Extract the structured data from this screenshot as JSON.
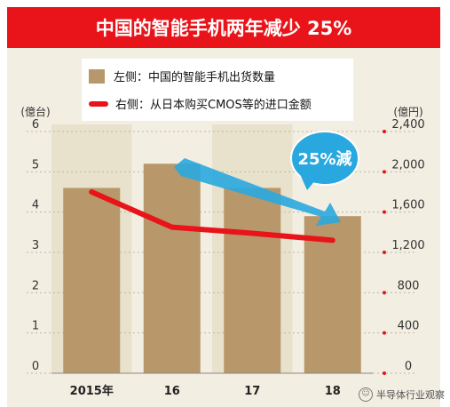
{
  "title": "中国的智能手机两年减少 25%",
  "legend": {
    "bar_label": "左侧：中国的智能手机出货数量",
    "line_label": "右侧：从日本购买CMOS等的进口金额"
  },
  "callout": "25%減",
  "watermark": "半导体行业观察",
  "colors": {
    "bar": "#b8976a",
    "line": "#e8141a",
    "arrow": "#29a8e0",
    "title_bg": "#e8141a"
  },
  "chart_data": {
    "type": "bar",
    "categories": [
      "2015年",
      "16",
      "17",
      "18"
    ],
    "left_axis": {
      "label": "(億台)",
      "ticks": [
        "0",
        "1",
        "2",
        "3",
        "4",
        "5",
        "6"
      ],
      "range": [
        0,
        6
      ]
    },
    "right_axis": {
      "label": "(億円)",
      "ticks": [
        "0",
        "400",
        "800",
        "1,200",
        "1,600",
        "2,000",
        "2,400"
      ],
      "range": [
        0,
        2400
      ]
    },
    "bars": {
      "values": [
        4.6,
        5.2,
        4.6,
        3.9
      ]
    },
    "line": {
      "values": [
        1800,
        1450,
        1390,
        1320
      ]
    }
  }
}
